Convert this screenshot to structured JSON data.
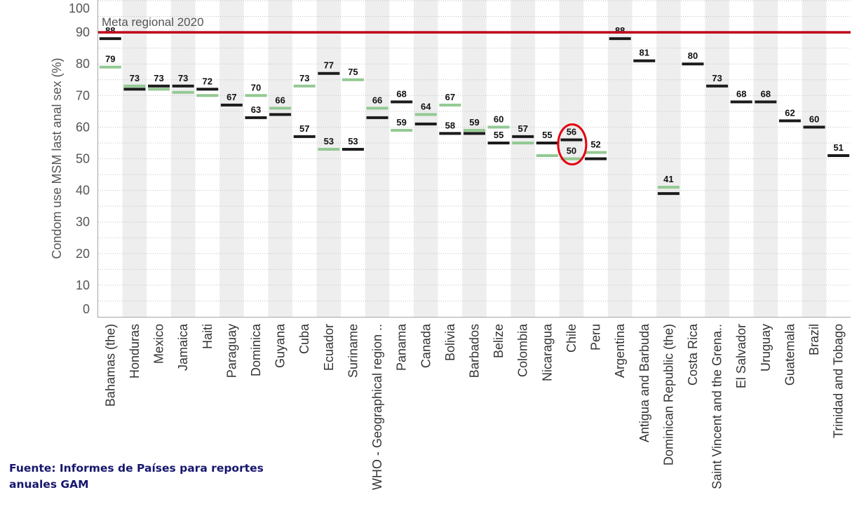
{
  "chart_data": {
    "type": "scatter",
    "ylabel": "Condom use MSM last anal sex (%)",
    "ylim": [
      0,
      100
    ],
    "yticks": [
      0,
      10,
      20,
      30,
      40,
      50,
      60,
      70,
      80,
      90,
      100
    ],
    "grid": true,
    "categories": [
      "Bahamas (the)",
      "Honduras",
      "Mexico",
      "Jamaica",
      "Haiti",
      "Paraguay",
      "Dominica",
      "Guyana",
      "Cuba",
      "Ecuador",
      "Suriname",
      "WHO - Geographical region ..",
      "Panama",
      "Canada",
      "Bolivia",
      "Barbados",
      "Belize",
      "Colombia",
      "Nicaragua",
      "Chile",
      "Peru",
      "Argentina",
      "Antigua and Barbuda",
      "Dominican Republic (the)",
      "Costa Rica",
      "Saint Vincent and the Grena..",
      "El Salvador",
      "Uruguay",
      "Guatemala",
      "Brazil",
      "Trinidad and Tobago"
    ],
    "series": [
      {
        "color": "#93c993",
        "values": [
          79,
          73,
          72,
          71,
          70,
          null,
          70,
          66,
          73,
          53,
          75,
          66,
          59,
          64,
          67,
          59,
          60,
          55,
          51,
          50,
          52,
          null,
          null,
          41,
          null,
          null,
          null,
          null,
          null,
          null,
          null
        ],
        "labels": [
          "79",
          "73",
          null,
          null,
          null,
          null,
          "70",
          "66",
          "73",
          "53",
          "75",
          "66",
          "59",
          "64",
          "67",
          "59",
          "60",
          null,
          null,
          "50",
          "52",
          null,
          null,
          "41",
          null,
          null,
          null,
          null,
          null,
          null,
          null
        ]
      },
      {
        "color": "#1b1b1b",
        "values": [
          88,
          72,
          73,
          73,
          72,
          67,
          63,
          64,
          57,
          77,
          53,
          63,
          68,
          61,
          58,
          58,
          55,
          57,
          55,
          56,
          50,
          88,
          81,
          39,
          80,
          73,
          68,
          68,
          62,
          60,
          51
        ],
        "labels": [
          "88",
          null,
          "73",
          "73",
          "72",
          "67",
          "63",
          null,
          "57",
          "77",
          "53",
          null,
          "68",
          null,
          "58",
          null,
          "55",
          "57",
          "55",
          "56",
          null,
          "88",
          "81",
          null,
          "80",
          "73",
          "68",
          "68",
          "62",
          "60",
          "51"
        ]
      }
    ],
    "reference_line": {
      "value": 90,
      "label": "Meta regional 2020",
      "color": "#c00018"
    },
    "highlight": {
      "category": "Chile",
      "color": "#e3000f"
    }
  },
  "source": {
    "lines": [
      "Fuente: Informes de Países para reportes",
      "anuales GAM"
    ]
  }
}
